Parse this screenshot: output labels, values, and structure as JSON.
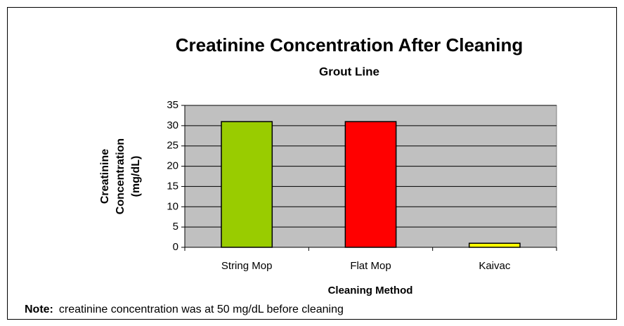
{
  "chart_data": {
    "type": "bar",
    "title": "Creatinine Concentration After Cleaning",
    "subtitle": "Grout Line",
    "ylabel": [
      "Creatinine",
      "Concentration",
      "(mg/dL)"
    ],
    "xlabel": "Cleaning Method",
    "categories": [
      "String Mop",
      "Flat Mop",
      "Kaivac"
    ],
    "values": [
      31,
      31,
      1
    ],
    "colors": [
      "#99cc00",
      "#ff0000",
      "#ffff00"
    ],
    "ylim": [
      0,
      35
    ],
    "yticks": [
      0,
      5,
      10,
      15,
      20,
      25,
      30,
      35
    ],
    "grid": true,
    "note_label": "Note:",
    "note": "creatinine concentration was at 50 mg/dL before cleaning"
  }
}
